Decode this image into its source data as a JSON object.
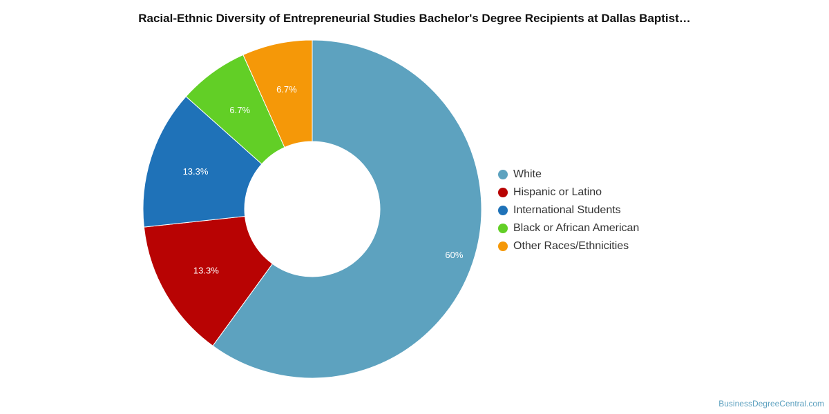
{
  "chart_data": {
    "type": "pie",
    "donut": true,
    "title": "Racial-Ethnic Diversity of Entrepreneurial Studies Bachelor's Degree Recipients at Dallas Baptist…",
    "legend_position": "right",
    "series": [
      {
        "name": "White",
        "value": 60,
        "label": "60%",
        "color": "#5da2bf"
      },
      {
        "name": "Hispanic or Latino",
        "value": 13.3,
        "label": "13.3%",
        "color": "#b80303"
      },
      {
        "name": "International Students",
        "value": 13.3,
        "label": "13.3%",
        "color": "#1f72b8"
      },
      {
        "name": "Black or African American",
        "value": 6.7,
        "label": "6.7%",
        "color": "#62cf26"
      },
      {
        "name": "Other Races/Ethnicities",
        "value": 6.7,
        "label": "6.7%",
        "color": "#f59808"
      }
    ]
  },
  "source_text": "BusinessDegreeCentral.com"
}
